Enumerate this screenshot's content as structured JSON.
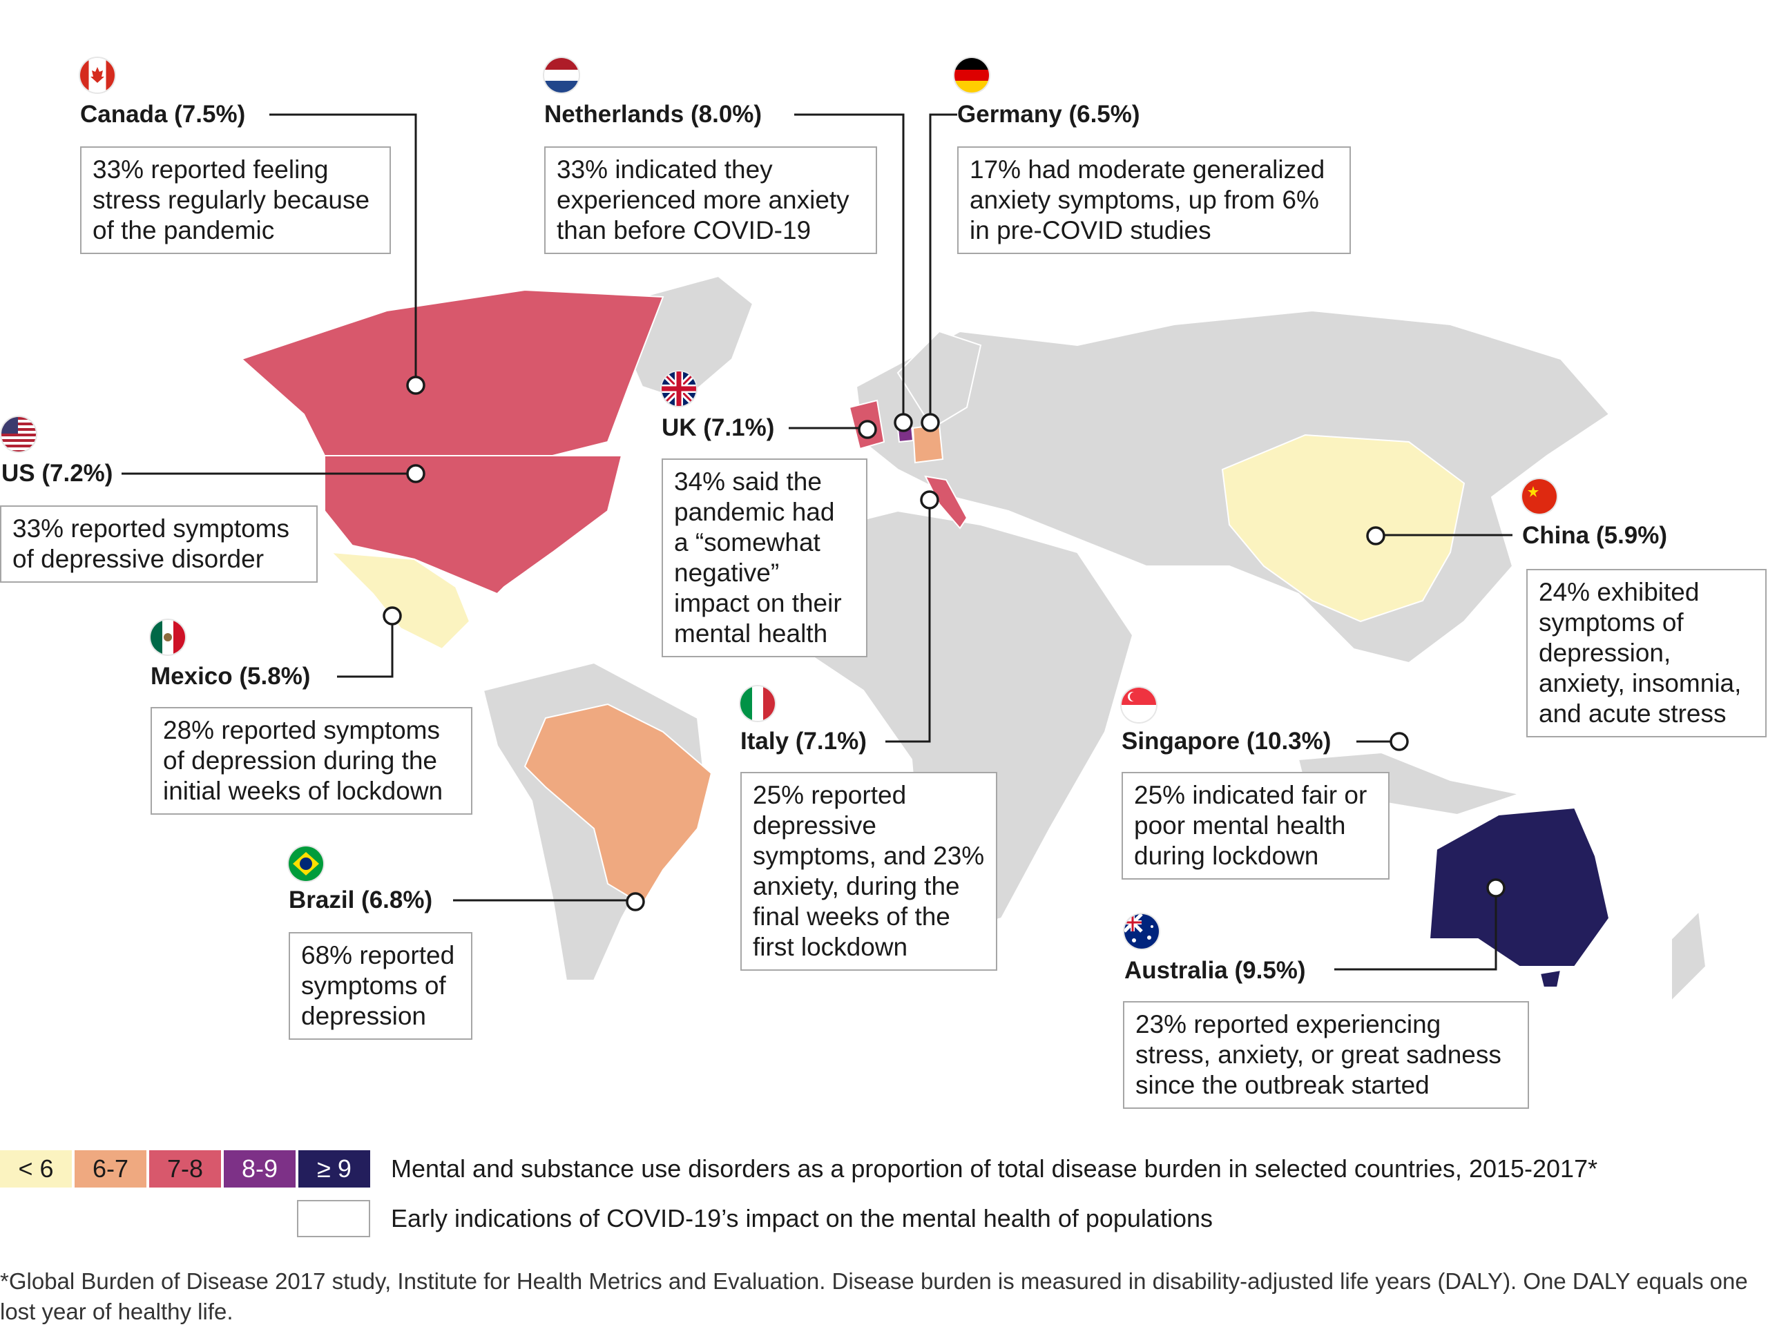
{
  "colors": {
    "land": "#d9d9d9",
    "border": "#ffffff",
    "lt6": "#fbf3c0",
    "r6_7": "#efa980",
    "r7_8": "#d8586c",
    "r8_9": "#7d3187",
    "ge9": "#231e5c",
    "leader": "#1a1a1a"
  },
  "countries": [
    {
      "key": "canada",
      "label": "Canada (7.5%)",
      "note": "33% reported feeling stress regularly because of the pandemic",
      "burden": 7.5,
      "flag": "canada-flag-icon"
    },
    {
      "key": "netherlands",
      "label": "Netherlands (8.0%)",
      "note": "33% indicated they experienced more anxiety than before COVID-19",
      "burden": 8.0,
      "flag": "netherlands-flag-icon"
    },
    {
      "key": "germany",
      "label": "Germany (6.5%)",
      "note": "17% had moderate generalized anxiety symptoms, up from 6% in pre-COVID studies",
      "burden": 6.5,
      "flag": "germany-flag-icon"
    },
    {
      "key": "us",
      "label": "US (7.2%)",
      "note": "33% reported symptoms of depressive disorder",
      "burden": 7.2,
      "flag": "us-flag-icon"
    },
    {
      "key": "uk",
      "label": "UK (7.1%)",
      "note": "34% said the pandemic had a “somewhat negative” impact on their mental health",
      "burden": 7.1,
      "flag": "uk-flag-icon"
    },
    {
      "key": "china",
      "label": "China (5.9%)",
      "note": "24% exhibited symptoms of depression, anxiety, insomnia, and acute stress",
      "burden": 5.9,
      "flag": "china-flag-icon"
    },
    {
      "key": "mexico",
      "label": "Mexico (5.8%)",
      "note": "28% reported symptoms of depression during the initial weeks of lockdown",
      "burden": 5.8,
      "flag": "mexico-flag-icon"
    },
    {
      "key": "italy",
      "label": "Italy (7.1%)",
      "note": "25% reported depressive symptoms, and 23% anxiety, during the final weeks of the first lockdown",
      "burden": 7.1,
      "flag": "italy-flag-icon"
    },
    {
      "key": "singapore",
      "label": "Singapore (10.3%)",
      "note": "25% indicated fair or poor mental health during lockdown",
      "burden": 10.3,
      "flag": "singapore-flag-icon"
    },
    {
      "key": "brazil",
      "label": "Brazil (6.8%)",
      "note": "68% reported symptoms of depression",
      "burden": 6.8,
      "flag": "brazil-flag-icon"
    },
    {
      "key": "australia",
      "label": "Australia (9.5%)",
      "note": "23% reported experiencing stress, anxiety, or great sadness since the outbreak started",
      "burden": 9.5,
      "flag": "australia-flag-icon"
    }
  ],
  "legend": {
    "bins": [
      "< 6",
      "6-7",
      "7-8",
      "8-9",
      "≥ 9"
    ],
    "scale_caption": "Mental and substance use disorders as a proportion of total disease burden in selected countries, 2015-2017*",
    "box_caption": "Early indications of COVID-19’s impact on the mental health of populations"
  },
  "footnote": "*Global Burden of Disease 2017 study, Institute for Health Metrics and Evaluation. Disease burden is measured in disability-adjusted life years (DALY). One DALY equals one lost year of healthy life."
}
